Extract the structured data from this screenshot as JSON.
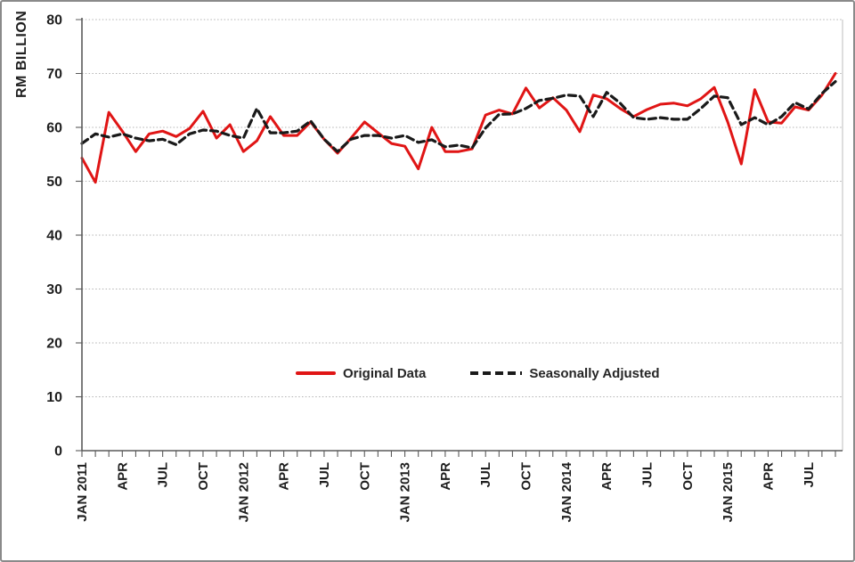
{
  "figure": {
    "background": "#ffffff",
    "border_color": "#8a8a8a"
  },
  "chart_data": {
    "type": "line",
    "title": "",
    "xlabel": "",
    "ylabel": "RM BILLION",
    "ylim": [
      0,
      80
    ],
    "y_ticks": [
      0,
      10,
      20,
      30,
      40,
      50,
      60,
      70,
      80
    ],
    "grid": "horizontal-dotted",
    "grid_color": "#b3b3b3",
    "axis_color": "#5a5a5a",
    "legend_position": "inside-lower-center",
    "x_start": "JAN 2011",
    "x_end": "SEP 2015",
    "x_frequency": "monthly",
    "n_points": 57,
    "x_tick_label_step": 3,
    "x_tick_labels": [
      "JAN 2011",
      "APR",
      "JUL",
      "OCT",
      "JAN 2012",
      "APR",
      "JUL",
      "OCT",
      "JAN 2013",
      "APR",
      "JUL",
      "OCT",
      "JAN 2014",
      "APR",
      "JUL",
      "OCT",
      "JAN 2015",
      "APR",
      "JUL"
    ],
    "series": [
      {
        "name": "Original Data",
        "color": "#e01515",
        "style": "solid",
        "values": [
          54.3,
          49.8,
          62.8,
          59.3,
          55.5,
          58.8,
          59.3,
          58.3,
          59.8,
          63,
          58,
          60.5,
          55.5,
          57.5,
          62,
          58.5,
          58.5,
          61,
          57.8,
          55.2,
          58,
          61,
          59,
          57,
          56.5,
          52.3,
          60,
          55.5,
          55.5,
          56,
          62.3,
          63.2,
          62.5,
          67.3,
          63.6,
          65.5,
          63.2,
          59.2,
          66,
          65.3,
          63.5,
          62,
          63.3,
          64.3,
          64.5,
          64,
          65.3,
          67.4,
          61,
          53.2,
          67,
          61,
          60.8,
          63.8,
          63.2,
          66,
          70
        ]
      },
      {
        "name": "Seasonally Adjusted",
        "color": "#1a1a1a",
        "style": "dashed",
        "values": [
          57,
          58.8,
          58.2,
          58.8,
          58,
          57.5,
          57.8,
          56.8,
          58.8,
          59.5,
          59.3,
          58.5,
          58,
          63.5,
          59,
          59,
          59.3,
          61.2,
          57.8,
          55.5,
          57.8,
          58.5,
          58.5,
          58,
          58.5,
          57.2,
          57.7,
          56.4,
          56.7,
          56.2,
          59.9,
          62.4,
          62.5,
          63.5,
          65,
          65.4,
          66,
          65.8,
          62,
          66.5,
          64.5,
          61.8,
          61.5,
          61.8,
          61.5,
          61.5,
          63.5,
          65.8,
          65.5,
          60.5,
          61.8,
          60.5,
          62,
          64.6,
          63.4,
          66.3,
          68.5
        ]
      }
    ]
  }
}
